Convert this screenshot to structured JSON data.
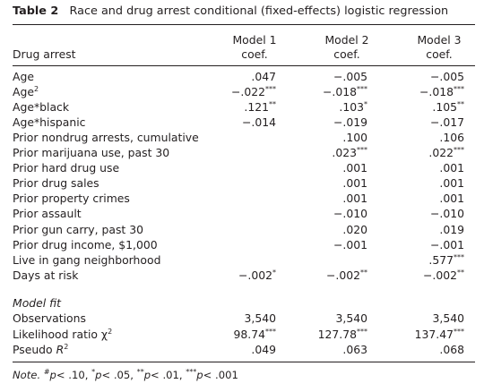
{
  "caption": {
    "label": "Table 2",
    "title": "Race and drug arrest conditional (fixed-effects) logistic regression"
  },
  "header": {
    "row_label": "Drug arrest",
    "models": [
      {
        "line1": "Model 1",
        "line2": "coef."
      },
      {
        "line1": "Model 2",
        "line2": "coef."
      },
      {
        "line1": "Model 3",
        "line2": "coef."
      }
    ]
  },
  "rows": [
    {
      "label": "Age",
      "m1": ".047",
      "m1s": "",
      "m2": "−.005",
      "m2s": "",
      "m3": "−.005",
      "m3s": ""
    },
    {
      "label": "Age",
      "lsup": "2",
      "m1": "−.022",
      "m1s": "***",
      "m2": "−.018",
      "m2s": "***",
      "m3": "−.018",
      "m3s": "***"
    },
    {
      "label": "Age*black",
      "m1": ".121",
      "m1s": "**",
      "m2": ".103",
      "m2s": "*",
      "m3": ".105",
      "m3s": "**"
    },
    {
      "label": "Age*hispanic",
      "m1": "−.014",
      "m1s": "",
      "m2": "−.019",
      "m2s": "",
      "m3": "−.017",
      "m3s": ""
    },
    {
      "label": "Prior nondrug arrests, cumulative",
      "m1": "",
      "m1s": "",
      "m2": ".100",
      "m2s": "",
      "m3": ".106",
      "m3s": ""
    },
    {
      "label": "Prior marijuana use, past 30",
      "m1": "",
      "m1s": "",
      "m2": ".023",
      "m2s": "***",
      "m3": ".022",
      "m3s": "***"
    },
    {
      "label": "Prior hard drug use",
      "m1": "",
      "m1s": "",
      "m2": ".001",
      "m2s": "",
      "m3": ".001",
      "m3s": ""
    },
    {
      "label": "Prior drug sales",
      "m1": "",
      "m1s": "",
      "m2": ".001",
      "m2s": "",
      "m3": ".001",
      "m3s": ""
    },
    {
      "label": "Prior property crimes",
      "m1": "",
      "m1s": "",
      "m2": ".001",
      "m2s": "",
      "m3": ".001",
      "m3s": ""
    },
    {
      "label": "Prior assault",
      "m1": "",
      "m1s": "",
      "m2": "−.010",
      "m2s": "",
      "m3": "−.010",
      "m3s": ""
    },
    {
      "label": "Prior gun carry, past 30",
      "m1": "",
      "m1s": "",
      "m2": ".020",
      "m2s": "",
      "m3": ".019",
      "m3s": ""
    },
    {
      "label": "Prior drug income, $1,000",
      "m1": "",
      "m1s": "",
      "m2": "−.001",
      "m2s": "",
      "m3": "−.001",
      "m3s": ""
    },
    {
      "label": "Live in gang neighborhood",
      "m1": "",
      "m1s": "",
      "m2": "",
      "m2s": "",
      "m3": ".577",
      "m3s": "***"
    },
    {
      "label": "Days at risk",
      "m1": "−.002",
      "m1s": "*",
      "m2": "−.002",
      "m2s": "**",
      "m3": "−.002",
      "m3s": "**"
    }
  ],
  "fit": {
    "heading": "Model fit",
    "rows": [
      {
        "label": "Observations",
        "m1": "3,540",
        "m1s": "",
        "m2": "3,540",
        "m2s": "",
        "m3": "3,540",
        "m3s": ""
      },
      {
        "label": "Likelihood ratio χ",
        "lsup": "2",
        "m1": "98.74",
        "m1s": "***",
        "m2": "127.78",
        "m2s": "***",
        "m3": "137.47",
        "m3s": "***"
      },
      {
        "label": "Pseudo ",
        "litalic": "R",
        "lsup": "2",
        "m1": ".049",
        "m1s": "",
        "m2": ".063",
        "m2s": "",
        "m3": ".068",
        "m3s": ""
      }
    ]
  },
  "note": {
    "label": "Note.",
    "s1": "#",
    "t1": "p",
    "v1": "< .10,",
    "s2": "*",
    "t2": "p",
    "v2": "< .05,",
    "s3": "**",
    "t3": "p",
    "v3": "< .01,",
    "s4": "***",
    "t4": "p",
    "v4": "< .001"
  }
}
